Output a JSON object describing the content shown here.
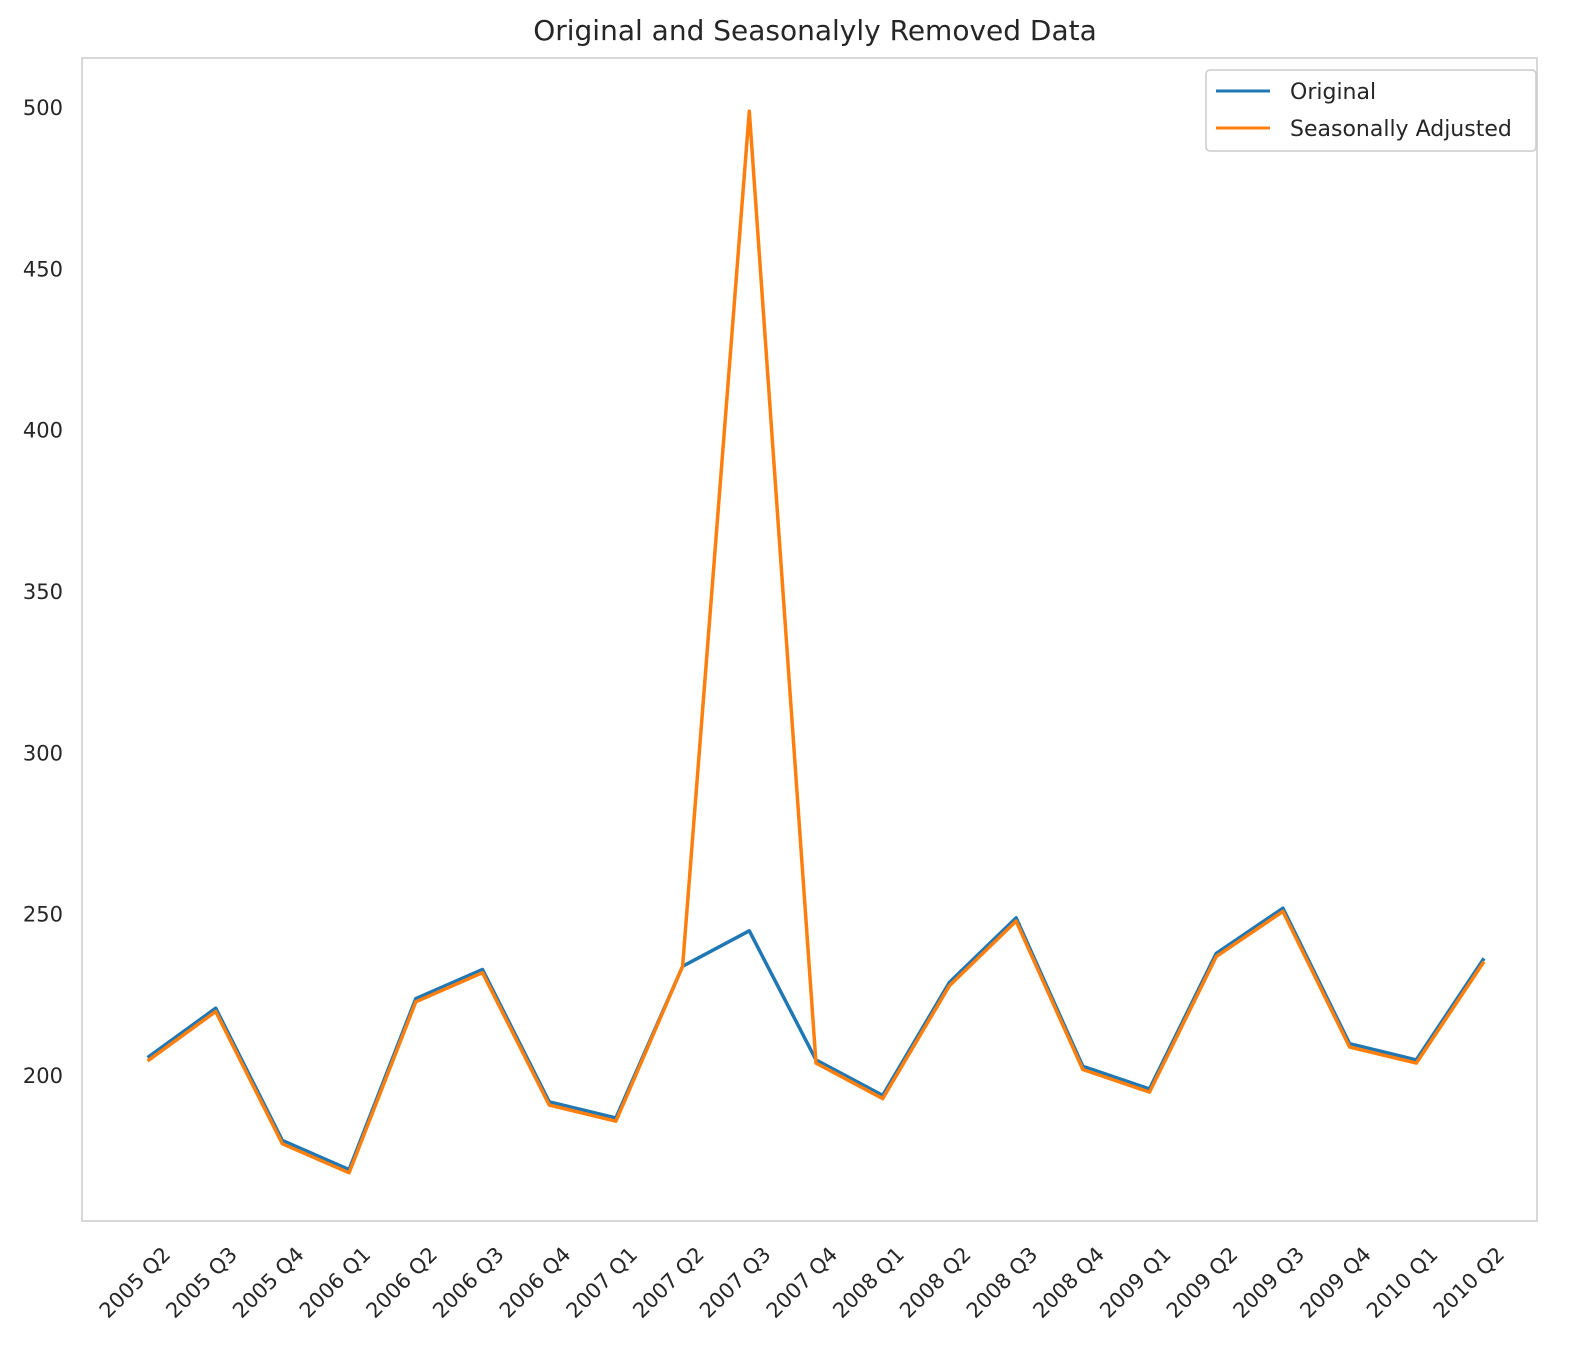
{
  "chart_data": {
    "type": "line",
    "title": "Original and Seasonalyly Removed Data",
    "xlabel": "",
    "ylabel": "",
    "categories": [
      "2005 Q2",
      "2005 Q3",
      "2005 Q4",
      "2006 Q1",
      "2006 Q2",
      "2006 Q3",
      "2006 Q4",
      "2007 Q1",
      "2007 Q2",
      "2007 Q3",
      "2007 Q4",
      "2008 Q1",
      "2008 Q2",
      "2008 Q3",
      "2008 Q4",
      "2009 Q1",
      "2009 Q2",
      "2009 Q3",
      "2009 Q4",
      "2010 Q1",
      "2010 Q2"
    ],
    "series": [
      {
        "name": "Original",
        "color": "#1f77b4",
        "values": [
          206,
          221,
          180,
          171,
          224,
          233,
          192,
          187,
          234,
          245,
          205,
          194,
          229,
          249,
          203,
          196,
          238,
          252,
          210,
          205,
          236
        ]
      },
      {
        "name": "Seasonally Adjusted",
        "color": "#ff7f0e",
        "values": [
          205,
          220,
          179,
          170,
          223,
          232,
          191,
          186,
          234,
          499,
          204,
          193,
          228,
          248,
          202,
          195,
          237,
          251,
          209,
          204,
          235
        ]
      }
    ],
    "ylim": [
      154,
      515
    ],
    "yticks": [
      200,
      250,
      300,
      350,
      400,
      450,
      500
    ],
    "grid": false,
    "legend_position": "top-right"
  }
}
